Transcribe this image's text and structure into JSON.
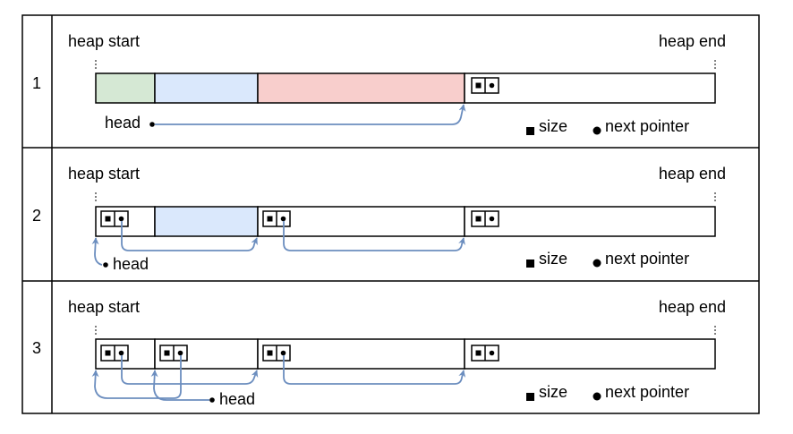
{
  "rows": [
    {
      "number": "1",
      "heap_start": "heap start",
      "heap_end": "heap end",
      "head": "head",
      "legend_size": "size",
      "legend_next": "next pointer",
      "colors": {
        "used_green": "#d5e8d4",
        "used_blue": "#dae8fc",
        "used_red": "#f8cecc"
      }
    },
    {
      "number": "2",
      "heap_start": "heap start",
      "heap_end": "heap end",
      "head": "head",
      "legend_size": "size",
      "legend_next": "next pointer",
      "colors": {
        "used_blue": "#dae8fc"
      }
    },
    {
      "number": "3",
      "heap_start": "heap start",
      "heap_end": "heap end",
      "head": "head",
      "legend_size": "size",
      "legend_next": "next pointer"
    }
  ],
  "colors": {
    "arrow": "#6c8ebf",
    "border": "#000000"
  }
}
